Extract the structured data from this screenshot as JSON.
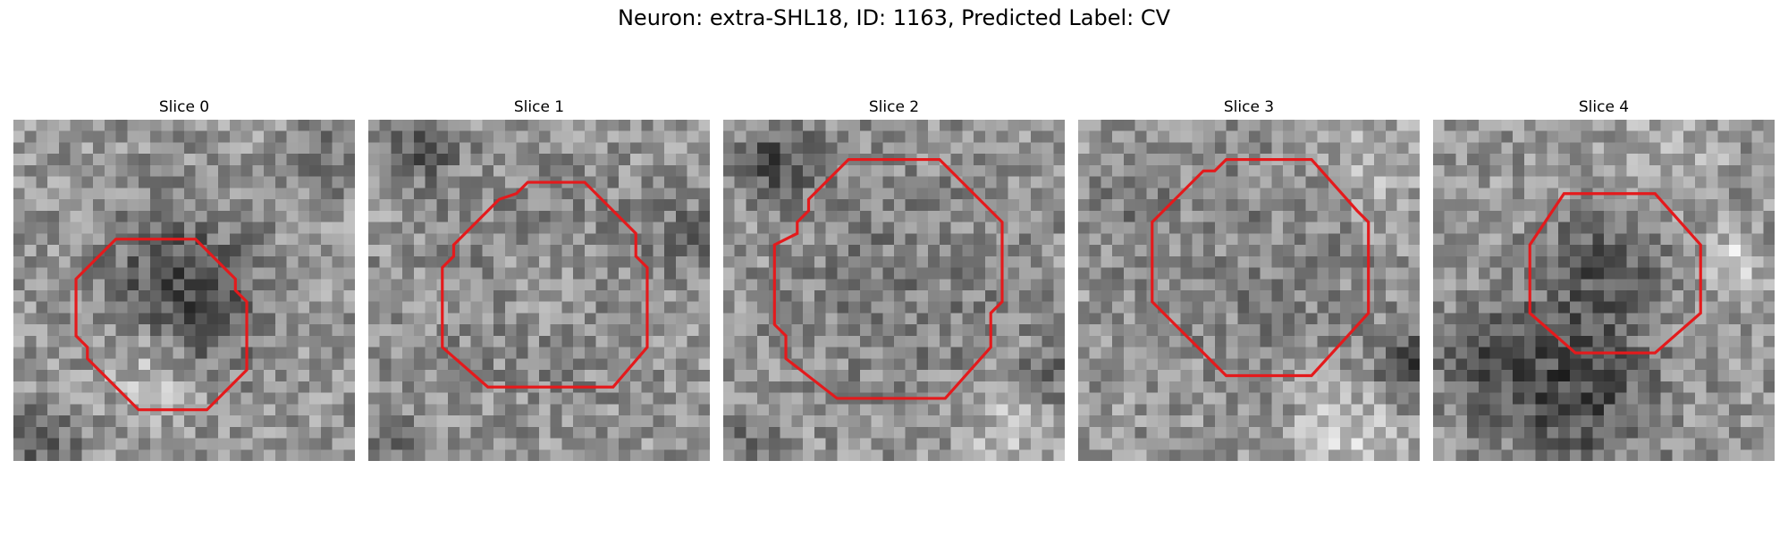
{
  "figure": {
    "title": "Neuron: extra-SHL18, ID: 1163, Predicted Label: CV"
  },
  "panels": [
    {
      "title": "Slice 0",
      "contour": [
        [
          9.0,
          10.5
        ],
        [
          16.0,
          10.5
        ],
        [
          19.5,
          14.0
        ],
        [
          19.5,
          15.0
        ],
        [
          20.5,
          16.0
        ],
        [
          20.5,
          22.0
        ],
        [
          17.0,
          25.5
        ],
        [
          11.0,
          25.5
        ],
        [
          6.5,
          21.0
        ],
        [
          6.5,
          20.0
        ],
        [
          5.5,
          19.0
        ],
        [
          5.5,
          14.0
        ]
      ]
    },
    {
      "title": "Slice 1",
      "contour": [
        [
          13.0,
          6.5
        ],
        [
          14.0,
          5.5
        ],
        [
          19.0,
          5.5
        ],
        [
          22.5,
          9.0
        ],
        [
          23.5,
          10.0
        ],
        [
          23.5,
          12.0
        ],
        [
          24.5,
          13.0
        ],
        [
          24.5,
          20.0
        ],
        [
          21.5,
          23.5
        ],
        [
          10.5,
          23.5
        ],
        [
          6.5,
          20.0
        ],
        [
          6.5,
          13.0
        ],
        [
          7.5,
          12.0
        ],
        [
          7.5,
          11.0
        ],
        [
          11.5,
          7.0
        ]
      ]
    },
    {
      "title": "Slice 2",
      "contour": [
        [
          11.0,
          3.5
        ],
        [
          19.0,
          3.5
        ],
        [
          24.5,
          9.0
        ],
        [
          24.5,
          16.0
        ],
        [
          23.5,
          17.0
        ],
        [
          23.5,
          20.0
        ],
        [
          19.5,
          24.5
        ],
        [
          10.0,
          24.5
        ],
        [
          5.5,
          21.0
        ],
        [
          5.5,
          19.0
        ],
        [
          4.5,
          18.0
        ],
        [
          4.5,
          11.0
        ],
        [
          6.5,
          10.0
        ],
        [
          6.5,
          9.0
        ],
        [
          7.5,
          8.0
        ],
        [
          7.5,
          7.0
        ]
      ]
    },
    {
      "title": "Slice 3",
      "contour": [
        [
          12.0,
          4.5
        ],
        [
          13.0,
          3.5
        ],
        [
          20.5,
          3.5
        ],
        [
          24.5,
          8.0
        ],
        [
          25.5,
          9.0
        ],
        [
          25.5,
          17.0
        ],
        [
          20.5,
          22.5
        ],
        [
          13.0,
          22.5
        ],
        [
          8.5,
          18.0
        ],
        [
          7.5,
          17.0
        ],
        [
          6.5,
          16.0
        ],
        [
          6.5,
          9.0
        ],
        [
          11.0,
          4.5
        ]
      ]
    },
    {
      "title": "Slice 4",
      "contour": [
        [
          11.5,
          6.5
        ],
        [
          19.5,
          6.5
        ],
        [
          23.5,
          11.0
        ],
        [
          23.5,
          17.0
        ],
        [
          19.5,
          20.5
        ],
        [
          12.5,
          20.5
        ],
        [
          8.5,
          17.0
        ],
        [
          8.5,
          11.0
        ]
      ]
    }
  ],
  "style": {
    "contour_color": "#e41a1c",
    "colormap": "gray"
  }
}
